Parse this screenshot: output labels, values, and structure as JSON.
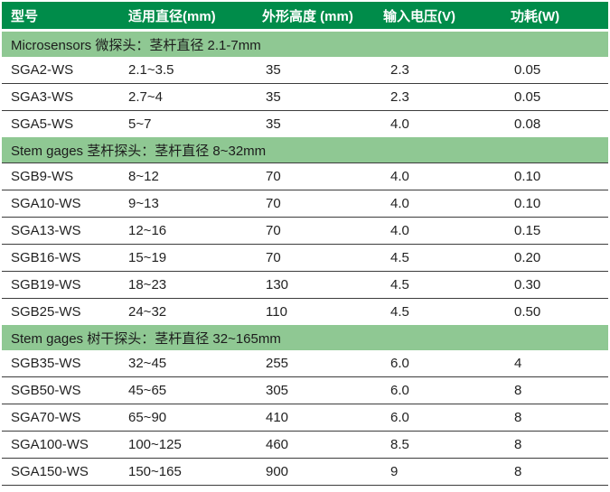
{
  "colors": {
    "header_bg": "#008c4a",
    "section_bg": "#8fc893",
    "header_text": "#ffffff",
    "body_text": "#222222",
    "grid_line": "#3c3c3c"
  },
  "table": {
    "columns": [
      "型号",
      "适用直径(mm)",
      "外形高度 (mm)",
      "输入电压(V)",
      "功耗(W)"
    ],
    "sections": [
      {
        "title": "Microsensors 微探头：茎杆直径 2.1-7mm",
        "rows": [
          [
            "SGA2-WS",
            "2.1~3.5",
            "35",
            "2.3",
            "0.05"
          ],
          [
            "SGA3-WS",
            "2.7~4",
            "35",
            "2.3",
            "0.05"
          ],
          [
            "SGA5-WS",
            "5~7",
            "35",
            "4.0",
            "0.08"
          ]
        ]
      },
      {
        "title": "Stem gages 茎杆探头：茎杆直径 8~32mm",
        "rows": [
          [
            "SGB9-WS",
            "8~12",
            "70",
            "4.0",
            "0.10"
          ],
          [
            "SGA10-WS",
            "9~13",
            "70",
            "4.0",
            "0.10"
          ],
          [
            "SGA13-WS",
            "12~16",
            "70",
            "4.0",
            "0.15"
          ],
          [
            "SGB16-WS",
            "15~19",
            "70",
            "4.5",
            "0.20"
          ],
          [
            "SGB19-WS",
            "18~23",
            "130",
            "4.5",
            "0.30"
          ],
          [
            "SGB25-WS",
            "24~32",
            "110",
            "4.5",
            "0.50"
          ]
        ]
      },
      {
        "title": "Stem gages 树干探头：茎杆直径 32~165mm",
        "rows": [
          [
            "SGB35-WS",
            "32~45",
            "255",
            "6.0",
            "4"
          ],
          [
            "SGB50-WS",
            "45~65",
            "305",
            "6.0",
            "8"
          ],
          [
            "SGA70-WS",
            "65~90",
            "410",
            "6.0",
            "8"
          ],
          [
            "SGA100-WS",
            "100~125",
            "460",
            "8.5",
            "8"
          ],
          [
            "SGA150-WS",
            "150~165",
            "900",
            "9",
            "8"
          ]
        ]
      }
    ]
  }
}
